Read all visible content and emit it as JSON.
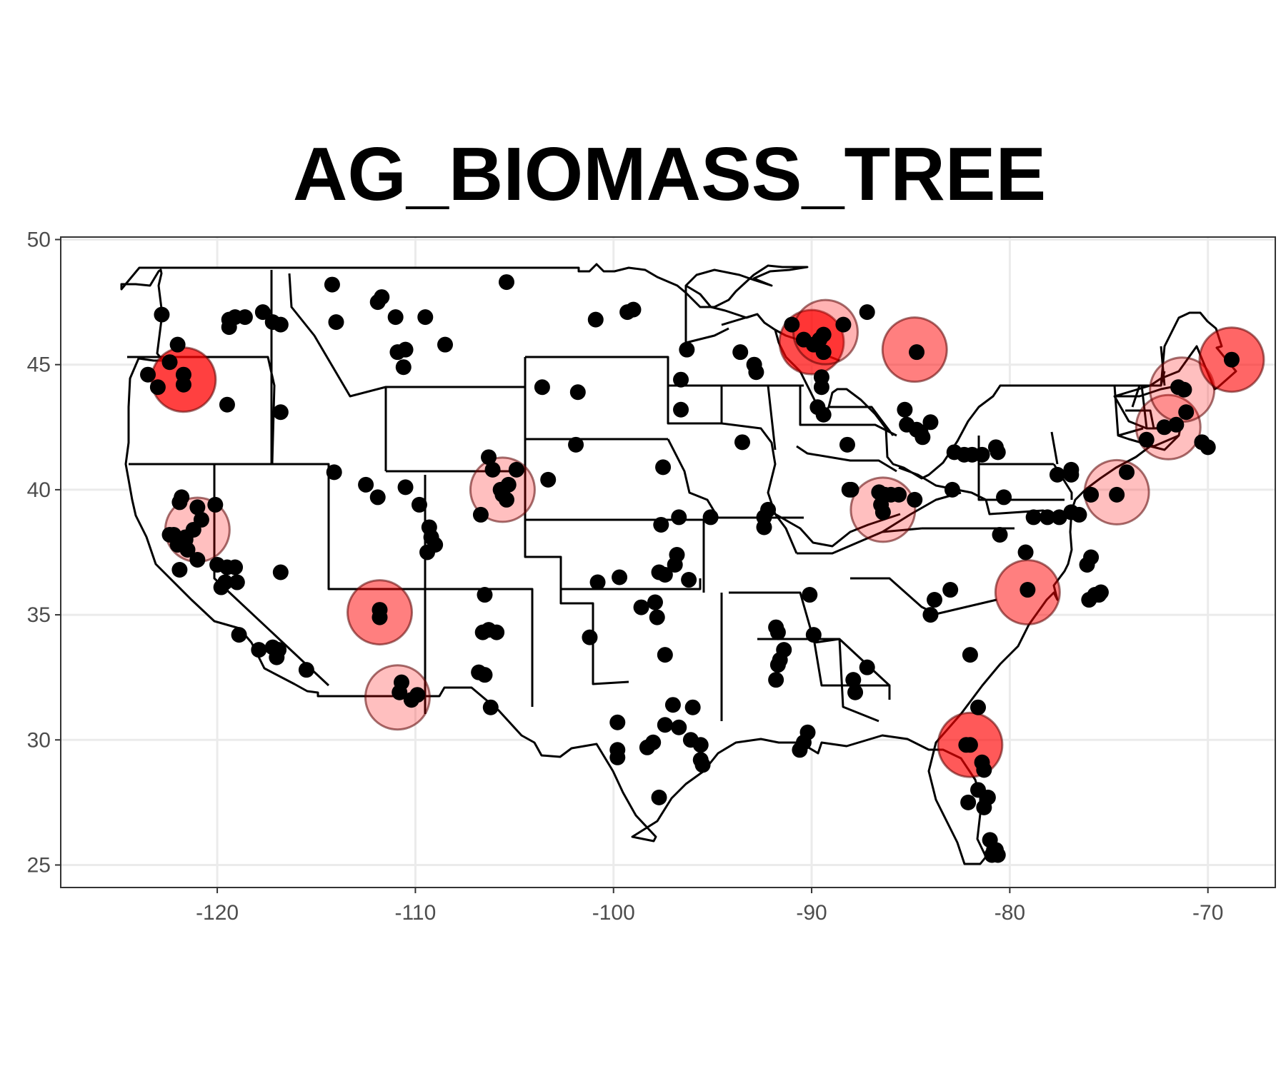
{
  "chart_data": {
    "type": "scatter",
    "title": "AG_BIOMASS_TREE",
    "xlabel": "",
    "ylabel": "",
    "xlim": [
      -127.9,
      -66.6
    ],
    "ylim": [
      24.1,
      50.1
    ],
    "x_ticks": [
      -120,
      -110,
      -100,
      -90,
      -80,
      -70
    ],
    "y_ticks": [
      25,
      30,
      35,
      40,
      45,
      50
    ],
    "x_tick_labels": [
      "-120",
      "-110",
      "-100",
      "-90",
      "-80",
      "-70"
    ],
    "y_tick_labels": [
      "25",
      "30",
      "35",
      "40",
      "45",
      "50"
    ],
    "grid": true,
    "legend": "none",
    "highlight_color": "#ff0000",
    "point_color": "#000000",
    "highlights": [
      {
        "lon": -121.7,
        "lat": 44.4,
        "intensity": 0.75
      },
      {
        "lon": -121.0,
        "lat": 38.4,
        "intensity": 0.25
      },
      {
        "lon": -111.8,
        "lat": 35.1,
        "intensity": 0.5
      },
      {
        "lon": -110.9,
        "lat": 31.7,
        "intensity": 0.25
      },
      {
        "lon": -105.6,
        "lat": 40.0,
        "intensity": 0.25
      },
      {
        "lon": -90.0,
        "lat": 45.9,
        "intensity": 0.7
      },
      {
        "lon": -89.3,
        "lat": 46.3,
        "intensity": 0.3
      },
      {
        "lon": -84.8,
        "lat": 45.6,
        "intensity": 0.5
      },
      {
        "lon": -86.4,
        "lat": 39.2,
        "intensity": 0.25
      },
      {
        "lon": -79.1,
        "lat": 35.9,
        "intensity": 0.5
      },
      {
        "lon": -82.0,
        "lat": 29.8,
        "intensity": 0.65
      },
      {
        "lon": -74.6,
        "lat": 39.9,
        "intensity": 0.25
      },
      {
        "lon": -72.0,
        "lat": 42.5,
        "intensity": 0.25
      },
      {
        "lon": -71.3,
        "lat": 44.0,
        "intensity": 0.25
      },
      {
        "lon": -68.8,
        "lat": 45.2,
        "intensity": 0.6
      }
    ],
    "points": [
      [
        -122.8,
        47.0
      ],
      [
        -123.5,
        44.6
      ],
      [
        -123.0,
        44.1
      ],
      [
        -122.4,
        45.1
      ],
      [
        -122.0,
        45.8
      ],
      [
        -121.7,
        44.2
      ],
      [
        -121.7,
        44.6
      ],
      [
        -119.5,
        43.4
      ],
      [
        -119.4,
        46.8
      ],
      [
        -119.4,
        46.5
      ],
      [
        -119.1,
        46.9
      ],
      [
        -118.6,
        46.9
      ],
      [
        -117.7,
        47.1
      ],
      [
        -117.2,
        46.7
      ],
      [
        -116.8,
        46.6
      ],
      [
        -116.8,
        43.1
      ],
      [
        -114.2,
        48.2
      ],
      [
        -114.0,
        46.7
      ],
      [
        -111.9,
        47.5
      ],
      [
        -111.7,
        47.7
      ],
      [
        -111.0,
        46.9
      ],
      [
        -110.5,
        45.6
      ],
      [
        -110.9,
        45.5
      ],
      [
        -110.6,
        44.9
      ],
      [
        -109.5,
        46.9
      ],
      [
        -108.5,
        45.8
      ],
      [
        -105.4,
        48.3
      ],
      [
        -100.9,
        46.8
      ],
      [
        -99.3,
        47.1
      ],
      [
        -99.0,
        47.2
      ],
      [
        -96.3,
        45.6
      ],
      [
        -93.6,
        45.5
      ],
      [
        -103.6,
        44.1
      ],
      [
        -101.8,
        43.9
      ],
      [
        -96.6,
        44.4
      ],
      [
        -96.6,
        43.2
      ],
      [
        -93.5,
        41.9
      ],
      [
        -92.9,
        45.0
      ],
      [
        -92.8,
        44.7
      ],
      [
        -97.5,
        40.9
      ],
      [
        -101.9,
        41.8
      ],
      [
        -103.3,
        40.4
      ],
      [
        -104.9,
        40.8
      ],
      [
        -105.3,
        40.2
      ],
      [
        -105.7,
        40.0
      ],
      [
        -105.6,
        39.8
      ],
      [
        -105.4,
        39.6
      ],
      [
        -106.1,
        40.8
      ],
      [
        -106.3,
        41.3
      ],
      [
        -106.7,
        39.0
      ],
      [
        -114.1,
        40.7
      ],
      [
        -112.5,
        40.2
      ],
      [
        -111.9,
        39.7
      ],
      [
        -110.5,
        40.1
      ],
      [
        -109.8,
        39.4
      ],
      [
        -109.3,
        38.5
      ],
      [
        -109.2,
        38.1
      ],
      [
        -109.4,
        37.5
      ],
      [
        -109.0,
        37.8
      ],
      [
        -111.8,
        35.2
      ],
      [
        -111.8,
        34.9
      ],
      [
        -110.7,
        32.3
      ],
      [
        -110.8,
        31.9
      ],
      [
        -110.2,
        31.6
      ],
      [
        -109.9,
        31.8
      ],
      [
        -106.5,
        35.8
      ],
      [
        -106.6,
        34.3
      ],
      [
        -106.3,
        34.4
      ],
      [
        -105.9,
        34.3
      ],
      [
        -106.8,
        32.7
      ],
      [
        -106.5,
        32.6
      ],
      [
        -106.2,
        31.3
      ],
      [
        -121.8,
        39.7
      ],
      [
        -121.9,
        39.5
      ],
      [
        -121.0,
        39.3
      ],
      [
        -120.1,
        39.4
      ],
      [
        -120.8,
        38.8
      ],
      [
        -121.2,
        38.4
      ],
      [
        -121.6,
        38.1
      ],
      [
        -122.2,
        38.2
      ],
      [
        -122.0,
        37.8
      ],
      [
        -121.5,
        37.6
      ],
      [
        -121.9,
        36.8
      ],
      [
        -121.0,
        37.2
      ],
      [
        -120.0,
        37.0
      ],
      [
        -119.5,
        36.9
      ],
      [
        -119.1,
        36.9
      ],
      [
        -119.8,
        36.1
      ],
      [
        -119.0,
        36.3
      ],
      [
        -119.6,
        36.3
      ],
      [
        -118.9,
        34.2
      ],
      [
        -117.9,
        33.6
      ],
      [
        -117.2,
        33.7
      ],
      [
        -116.9,
        33.6
      ],
      [
        -117.0,
        33.3
      ],
      [
        -115.5,
        32.8
      ],
      [
        -116.8,
        36.7
      ],
      [
        -121.6,
        38.0
      ],
      [
        -122.4,
        38.2
      ],
      [
        -99.7,
        36.5
      ],
      [
        -98.6,
        35.3
      ],
      [
        -97.9,
        35.5
      ],
      [
        -97.8,
        34.9
      ],
      [
        -97.4,
        36.6
      ],
      [
        -97.7,
        36.7
      ],
      [
        -96.9,
        37.0
      ],
      [
        -96.8,
        37.4
      ],
      [
        -96.2,
        36.4
      ],
      [
        -96.7,
        38.9
      ],
      [
        -97.6,
        38.6
      ],
      [
        -95.1,
        38.9
      ],
      [
        -100.8,
        36.3
      ],
      [
        -101.2,
        34.1
      ],
      [
        -99.8,
        30.7
      ],
      [
        -99.8,
        29.6
      ],
      [
        -99.8,
        29.3
      ],
      [
        -98.3,
        29.7
      ],
      [
        -98.0,
        29.9
      ],
      [
        -97.0,
        31.4
      ],
      [
        -96.0,
        31.3
      ],
      [
        -97.4,
        30.6
      ],
      [
        -96.7,
        30.5
      ],
      [
        -96.1,
        30.0
      ],
      [
        -95.6,
        29.8
      ],
      [
        -95.6,
        29.2
      ],
      [
        -95.5,
        29.0
      ],
      [
        -97.4,
        33.4
      ],
      [
        -97.7,
        27.7
      ],
      [
        -92.2,
        39.2
      ],
      [
        -92.4,
        38.9
      ],
      [
        -92.4,
        38.5
      ],
      [
        -91.8,
        34.5
      ],
      [
        -91.7,
        34.3
      ],
      [
        -91.4,
        33.6
      ],
      [
        -91.6,
        33.2
      ],
      [
        -91.7,
        33.0
      ],
      [
        -91.8,
        32.4
      ],
      [
        -90.1,
        35.8
      ],
      [
        -89.9,
        34.2
      ],
      [
        -90.2,
        30.3
      ],
      [
        -90.4,
        29.9
      ],
      [
        -90.6,
        29.6
      ],
      [
        -91.0,
        46.6
      ],
      [
        -90.4,
        46.0
      ],
      [
        -89.9,
        45.8
      ],
      [
        -89.6,
        46.0
      ],
      [
        -89.4,
        46.2
      ],
      [
        -89.4,
        45.5
      ],
      [
        -89.5,
        44.5
      ],
      [
        -89.5,
        44.1
      ],
      [
        -89.7,
        43.3
      ],
      [
        -89.4,
        43.0
      ],
      [
        -88.4,
        46.6
      ],
      [
        -87.2,
        47.1
      ],
      [
        -84.7,
        45.5
      ],
      [
        -85.3,
        43.2
      ],
      [
        -85.2,
        42.6
      ],
      [
        -84.7,
        42.4
      ],
      [
        -84.5,
        42.3
      ],
      [
        -84.4,
        42.1
      ],
      [
        -84.0,
        42.7
      ],
      [
        -88.2,
        41.8
      ],
      [
        -88.1,
        40.0
      ],
      [
        -88.0,
        40.0
      ],
      [
        -86.6,
        39.9
      ],
      [
        -86.3,
        39.8
      ],
      [
        -86.0,
        39.8
      ],
      [
        -85.6,
        39.8
      ],
      [
        -86.5,
        39.4
      ],
      [
        -86.4,
        39.1
      ],
      [
        -84.8,
        39.6
      ],
      [
        -82.8,
        41.5
      ],
      [
        -82.3,
        41.4
      ],
      [
        -81.9,
        41.4
      ],
      [
        -81.4,
        41.4
      ],
      [
        -80.7,
        41.7
      ],
      [
        -80.6,
        41.5
      ],
      [
        -82.9,
        40.0
      ],
      [
        -80.3,
        39.7
      ],
      [
        -80.5,
        38.2
      ],
      [
        -78.8,
        38.9
      ],
      [
        -78.1,
        38.9
      ],
      [
        -77.5,
        38.9
      ],
      [
        -76.9,
        39.1
      ],
      [
        -76.5,
        39.0
      ],
      [
        -75.9,
        39.8
      ],
      [
        -76.9,
        40.6
      ],
      [
        -76.9,
        40.8
      ],
      [
        -77.6,
        40.6
      ],
      [
        -75.9,
        37.3
      ],
      [
        -76.1,
        37.0
      ],
      [
        -75.5,
        35.8
      ],
      [
        -75.7,
        35.8
      ],
      [
        -76.0,
        35.6
      ],
      [
        -75.4,
        35.9
      ],
      [
        -79.2,
        37.5
      ],
      [
        -79.1,
        36.0
      ],
      [
        -83.0,
        36.0
      ],
      [
        -83.8,
        35.6
      ],
      [
        -84.0,
        35.0
      ],
      [
        -82.0,
        33.4
      ],
      [
        -81.6,
        31.3
      ],
      [
        -87.9,
        32.4
      ],
      [
        -87.2,
        32.9
      ],
      [
        -87.8,
        31.9
      ],
      [
        -82.0,
        29.8
      ],
      [
        -82.2,
        29.8
      ],
      [
        -81.4,
        29.1
      ],
      [
        -81.3,
        28.8
      ],
      [
        -81.6,
        28.0
      ],
      [
        -81.1,
        27.7
      ],
      [
        -81.3,
        27.3
      ],
      [
        -82.1,
        27.5
      ],
      [
        -81.0,
        26.0
      ],
      [
        -80.8,
        25.6
      ],
      [
        -80.9,
        25.4
      ],
      [
        -80.6,
        25.4
      ],
      [
        -80.7,
        25.6
      ],
      [
        -74.6,
        39.8
      ],
      [
        -74.1,
        40.7
      ],
      [
        -73.1,
        42.0
      ],
      [
        -72.2,
        42.5
      ],
      [
        -71.6,
        42.6
      ],
      [
        -71.1,
        43.1
      ],
      [
        -70.3,
        41.9
      ],
      [
        -70.0,
        41.7
      ],
      [
        -71.2,
        44.0
      ],
      [
        -71.5,
        44.1
      ],
      [
        -68.8,
        45.2
      ]
    ]
  }
}
